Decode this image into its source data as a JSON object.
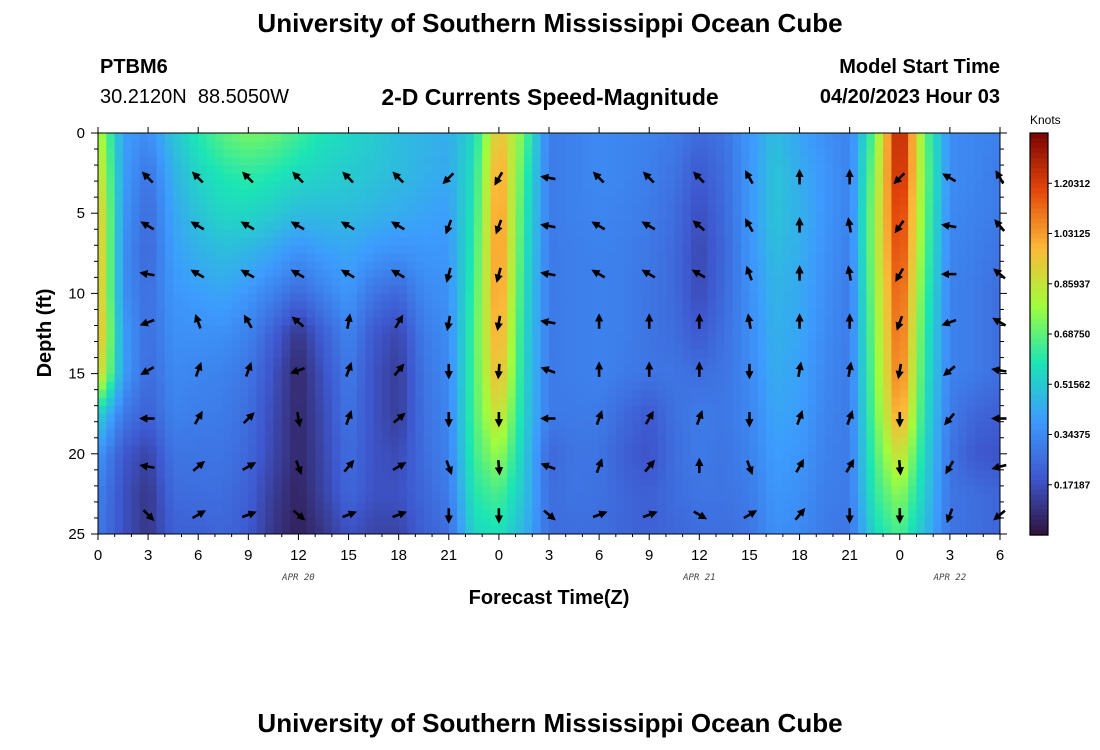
{
  "page": {
    "title": "University of Southern Mississippi Ocean Cube",
    "title_repeat": "University of Southern Mississippi Ocean Cube"
  },
  "header": {
    "station": "PTBM6",
    "coordinates": "30.2120N  88.5050W",
    "plot_title": "2-D Currents Speed-Magnitude",
    "start_label": "Model Start Time",
    "start_value": "04/20/2023 Hour 03"
  },
  "colorbar": {
    "units": "Knots",
    "tick_labels": [
      "1.20312",
      "1.03125",
      "0.85937",
      "0.68750",
      "0.51562",
      "0.34375",
      "0.17187"
    ],
    "tick_values": [
      1.20312,
      1.03125,
      0.85937,
      0.6875,
      0.51562,
      0.34375,
      0.17187
    ],
    "range": [
      0.0,
      1.375
    ],
    "colormap": [
      "#30123b",
      "#3e58cf",
      "#3d9bfe",
      "#1be5b5",
      "#a2fc3c",
      "#fbb938",
      "#e4460a",
      "#7a0403"
    ]
  },
  "chart_data": {
    "type": "heatmap",
    "ylabel": "Depth (ft)",
    "xlabel": "Forecast Time(Z)",
    "x_range": [
      0,
      54
    ],
    "y_range": [
      0,
      25
    ],
    "y_inverted": true,
    "x_tick_positions": [
      0,
      3,
      6,
      9,
      12,
      15,
      18,
      21,
      24,
      27,
      30,
      33,
      36,
      39,
      42,
      45,
      48,
      51,
      54
    ],
    "x_tick_labels": [
      "0",
      "3",
      "6",
      "9",
      "12",
      "15",
      "18",
      "21",
      "0",
      "3",
      "6",
      "9",
      "12",
      "15",
      "18",
      "21",
      "0",
      "3",
      "6"
    ],
    "y_tick_values": [
      0,
      5,
      10,
      15,
      20,
      25
    ],
    "y_tick_labels": [
      "0",
      "5",
      "10",
      "15",
      "20",
      "25"
    ],
    "date_labels": [
      {
        "x": 12,
        "label": "APR 20"
      },
      {
        "x": 36,
        "label": "APR 21"
      },
      {
        "x": 51,
        "label": "APR 22"
      }
    ],
    "speed_grid": {
      "x": [
        0,
        1.5,
        3,
        4.5,
        6,
        7.5,
        9,
        10.5,
        12,
        13.5,
        15,
        16.5,
        18,
        19.5,
        21,
        22.5,
        24,
        25.5,
        27,
        28.5,
        30,
        31.5,
        33,
        34.5,
        36,
        37.5,
        39,
        40.5,
        42,
        43.5,
        45,
        46.5,
        48,
        49.5,
        51,
        52.5,
        54
      ],
      "depth": [
        0,
        2.5,
        5,
        7.5,
        10,
        12.5,
        15,
        17.5,
        20,
        22.5,
        25
      ],
      "values": [
        [
          0.85,
          0.4,
          0.35,
          0.5,
          0.6,
          0.68,
          0.72,
          0.7,
          0.64,
          0.58,
          0.55,
          0.52,
          0.48,
          0.46,
          0.44,
          0.55,
          0.98,
          0.7,
          0.3,
          0.32,
          0.34,
          0.33,
          0.32,
          0.3,
          0.25,
          0.28,
          0.38,
          0.48,
          0.42,
          0.36,
          0.32,
          0.7,
          1.33,
          0.7,
          0.35,
          0.33,
          0.32
        ],
        [
          0.92,
          0.4,
          0.28,
          0.45,
          0.55,
          0.6,
          0.62,
          0.6,
          0.56,
          0.54,
          0.52,
          0.5,
          0.48,
          0.45,
          0.43,
          0.58,
          1.05,
          0.65,
          0.3,
          0.32,
          0.34,
          0.33,
          0.31,
          0.28,
          0.2,
          0.26,
          0.38,
          0.5,
          0.44,
          0.38,
          0.32,
          0.75,
          1.3,
          0.72,
          0.35,
          0.33,
          0.3
        ],
        [
          0.98,
          0.38,
          0.25,
          0.42,
          0.5,
          0.55,
          0.55,
          0.52,
          0.48,
          0.48,
          0.48,
          0.46,
          0.44,
          0.42,
          0.4,
          0.6,
          1.07,
          0.62,
          0.3,
          0.32,
          0.33,
          0.32,
          0.3,
          0.26,
          0.17,
          0.25,
          0.38,
          0.5,
          0.45,
          0.38,
          0.32,
          0.78,
          1.25,
          0.7,
          0.34,
          0.32,
          0.3
        ],
        [
          1.0,
          0.36,
          0.24,
          0.4,
          0.45,
          0.48,
          0.46,
          0.42,
          0.36,
          0.4,
          0.42,
          0.38,
          0.36,
          0.38,
          0.38,
          0.62,
          1.08,
          0.6,
          0.3,
          0.31,
          0.32,
          0.31,
          0.29,
          0.25,
          0.15,
          0.24,
          0.37,
          0.48,
          0.44,
          0.37,
          0.31,
          0.78,
          1.22,
          0.68,
          0.33,
          0.31,
          0.28
        ],
        [
          1.0,
          0.36,
          0.26,
          0.38,
          0.4,
          0.42,
          0.38,
          0.32,
          0.25,
          0.32,
          0.38,
          0.28,
          0.24,
          0.34,
          0.36,
          0.64,
          1.07,
          0.58,
          0.3,
          0.31,
          0.32,
          0.31,
          0.28,
          0.25,
          0.16,
          0.25,
          0.36,
          0.46,
          0.43,
          0.36,
          0.3,
          0.76,
          1.18,
          0.65,
          0.32,
          0.3,
          0.26
        ],
        [
          1.02,
          0.4,
          0.26,
          0.36,
          0.36,
          0.36,
          0.32,
          0.22,
          0.1,
          0.22,
          0.33,
          0.2,
          0.15,
          0.3,
          0.35,
          0.66,
          1.04,
          0.56,
          0.3,
          0.31,
          0.32,
          0.31,
          0.28,
          0.26,
          0.2,
          0.27,
          0.35,
          0.45,
          0.42,
          0.35,
          0.3,
          0.74,
          1.15,
          0.62,
          0.32,
          0.3,
          0.26
        ],
        [
          0.95,
          0.4,
          0.25,
          0.34,
          0.33,
          0.32,
          0.28,
          0.18,
          0.06,
          0.18,
          0.3,
          0.18,
          0.12,
          0.28,
          0.34,
          0.66,
          1.0,
          0.55,
          0.3,
          0.31,
          0.32,
          0.3,
          0.28,
          0.28,
          0.26,
          0.28,
          0.34,
          0.44,
          0.41,
          0.34,
          0.3,
          0.72,
          1.12,
          0.6,
          0.32,
          0.3,
          0.26
        ],
        [
          0.55,
          0.3,
          0.22,
          0.32,
          0.31,
          0.3,
          0.26,
          0.16,
          0.06,
          0.16,
          0.28,
          0.18,
          0.12,
          0.27,
          0.33,
          0.66,
          0.9,
          0.54,
          0.3,
          0.3,
          0.3,
          0.25,
          0.2,
          0.27,
          0.3,
          0.29,
          0.33,
          0.42,
          0.4,
          0.33,
          0.3,
          0.7,
          1.05,
          0.58,
          0.3,
          0.24,
          0.22
        ],
        [
          0.38,
          0.2,
          0.14,
          0.28,
          0.28,
          0.28,
          0.24,
          0.15,
          0.06,
          0.15,
          0.26,
          0.18,
          0.16,
          0.26,
          0.32,
          0.64,
          0.78,
          0.52,
          0.24,
          0.28,
          0.28,
          0.22,
          0.18,
          0.26,
          0.3,
          0.28,
          0.32,
          0.4,
          0.38,
          0.32,
          0.3,
          0.66,
          0.9,
          0.55,
          0.28,
          0.2,
          0.18
        ],
        [
          0.32,
          0.18,
          0.1,
          0.25,
          0.26,
          0.26,
          0.22,
          0.12,
          0.05,
          0.14,
          0.24,
          0.18,
          0.18,
          0.24,
          0.3,
          0.6,
          0.66,
          0.5,
          0.26,
          0.28,
          0.27,
          0.24,
          0.22,
          0.26,
          0.28,
          0.28,
          0.3,
          0.38,
          0.36,
          0.31,
          0.3,
          0.62,
          0.76,
          0.52,
          0.28,
          0.26,
          0.24
        ],
        [
          0.3,
          0.18,
          0.1,
          0.22,
          0.22,
          0.24,
          0.2,
          0.1,
          0.04,
          0.1,
          0.18,
          0.14,
          0.14,
          0.22,
          0.26,
          0.55,
          0.58,
          0.46,
          0.26,
          0.26,
          0.26,
          0.24,
          0.22,
          0.24,
          0.26,
          0.26,
          0.28,
          0.36,
          0.34,
          0.3,
          0.28,
          0.56,
          0.66,
          0.48,
          0.28,
          0.26,
          0.24
        ]
      ]
    },
    "current_vectors": {
      "x": [
        3,
        6,
        9,
        12,
        15,
        18,
        21,
        24,
        27,
        30,
        33,
        36,
        39,
        42,
        45,
        48,
        51,
        54
      ],
      "depth": [
        2.8,
        5.8,
        8.8,
        11.8,
        14.8,
        17.8,
        20.8,
        23.8
      ],
      "direction_deg": [
        [
          315,
          315,
          315,
          315,
          315,
          315,
          225,
          210,
          280,
          315,
          315,
          315,
          330,
          0,
          0,
          225,
          300,
          330
        ],
        [
          300,
          300,
          300,
          300,
          300,
          300,
          200,
          200,
          280,
          300,
          300,
          310,
          330,
          0,
          350,
          215,
          280,
          320
        ],
        [
          280,
          300,
          300,
          300,
          300,
          300,
          195,
          195,
          280,
          300,
          300,
          300,
          340,
          0,
          350,
          210,
          270,
          310
        ],
        [
          250,
          340,
          330,
          310,
          10,
          30,
          190,
          190,
          280,
          0,
          0,
          0,
          350,
          0,
          0,
          200,
          250,
          300
        ],
        [
          240,
          20,
          20,
          250,
          20,
          40,
          180,
          185,
          290,
          0,
          0,
          0,
          180,
          10,
          10,
          190,
          230,
          280
        ],
        [
          270,
          30,
          45,
          170,
          20,
          50,
          180,
          180,
          270,
          20,
          30,
          20,
          180,
          20,
          20,
          180,
          220,
          270
        ],
        [
          280,
          50,
          60,
          160,
          40,
          60,
          160,
          175,
          290,
          20,
          40,
          0,
          160,
          30,
          30,
          175,
          210,
          255
        ],
        [
          135,
          60,
          70,
          130,
          70,
          70,
          180,
          180,
          130,
          70,
          70,
          120,
          60,
          40,
          180,
          180,
          200,
          230
        ]
      ]
    }
  }
}
